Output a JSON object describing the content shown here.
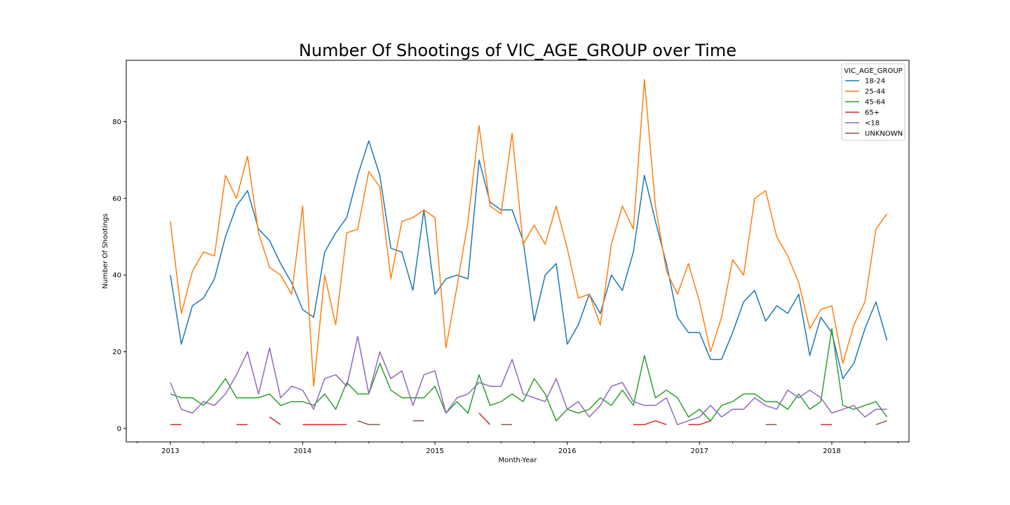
{
  "chart_data": {
    "type": "line",
    "title": "Number Of Shootings of VIC_AGE_GROUP over Time",
    "xlabel": "Month-Year",
    "ylabel": "Number Of Shootings",
    "x_start": "2013-01",
    "x_range": [
      "2012-09",
      "2018-08"
    ],
    "ylim": [
      -3.5,
      96
    ],
    "y_ticks": [
      0,
      20,
      40,
      60,
      80
    ],
    "x_ticks": [
      {
        "label": "2013",
        "date": "2013-01"
      },
      {
        "label": "2014",
        "date": "2014-01"
      },
      {
        "label": "2015",
        "date": "2015-01"
      },
      {
        "label": "2016",
        "date": "2016-01"
      },
      {
        "label": "2017",
        "date": "2017-01"
      },
      {
        "label": "2018",
        "date": "2018-01"
      }
    ],
    "legend": {
      "title": "VIC_AGE_GROUP",
      "position": "top-right"
    },
    "grid": false,
    "series": [
      {
        "name": "18-24",
        "color": "#1f77b4",
        "values": [
          40,
          22,
          32,
          34,
          39,
          50,
          58,
          62,
          52,
          49,
          43,
          38,
          31,
          29,
          46,
          51,
          55,
          66,
          75,
          66,
          47,
          46,
          36,
          57,
          35,
          39,
          40,
          39,
          70,
          59,
          57,
          57,
          49,
          28,
          40,
          43,
          22,
          27,
          35,
          30,
          40,
          36,
          46,
          66,
          54,
          43,
          29,
          25,
          25,
          18,
          18,
          25,
          33,
          36,
          28,
          32,
          30,
          35,
          19,
          29,
          25,
          13,
          17,
          26,
          33,
          23
        ]
      },
      {
        "name": "25-44",
        "color": "#ff7f0e",
        "values": [
          54,
          30,
          41,
          46,
          45,
          66,
          60,
          71,
          51,
          42,
          40,
          35,
          58,
          11,
          40,
          27,
          51,
          52,
          67,
          63,
          39,
          54,
          55,
          57,
          55,
          21,
          37,
          54,
          79,
          58,
          56,
          77,
          48,
          53,
          48,
          58,
          47,
          34,
          35,
          27,
          48,
          58,
          52,
          91,
          58,
          41,
          35,
          43,
          33,
          20,
          29,
          44,
          40,
          60,
          62,
          50,
          45,
          38,
          26,
          31,
          32,
          17,
          27,
          33,
          52,
          56
        ]
      },
      {
        "name": "45-64",
        "color": "#2ca02c",
        "values": [
          9,
          8,
          8,
          6,
          9,
          13,
          8,
          8,
          8,
          9,
          6,
          7,
          7,
          6,
          9,
          5,
          12,
          9,
          9,
          17,
          10,
          8,
          8,
          8,
          11,
          4,
          7,
          4,
          14,
          6,
          7,
          9,
          7,
          13,
          9,
          2,
          5,
          4,
          5,
          8,
          6,
          10,
          6,
          19,
          8,
          10,
          8,
          3,
          5,
          2,
          6,
          7,
          9,
          9,
          7,
          7,
          5,
          9,
          5,
          7,
          26,
          6,
          5,
          6,
          7,
          3
        ]
      },
      {
        "name": "65+",
        "color": "#d62728",
        "values": [
          1,
          1,
          null,
          null,
          null,
          null,
          1,
          1,
          null,
          3,
          1,
          null,
          1,
          1,
          1,
          1,
          1,
          null,
          null,
          null,
          null,
          null,
          null,
          null,
          null,
          null,
          null,
          null,
          4,
          1,
          null,
          null,
          null,
          null,
          null,
          null,
          null,
          null,
          null,
          null,
          null,
          null,
          1,
          1,
          2,
          1,
          null,
          1,
          1,
          2,
          null,
          null,
          null,
          null,
          null,
          null,
          null,
          null,
          null,
          1,
          1,
          null,
          null,
          null,
          null,
          null
        ]
      },
      {
        "name": "<18",
        "color": "#9467bd",
        "values": [
          12,
          5,
          4,
          7,
          6,
          9,
          14,
          20,
          9,
          21,
          8,
          11,
          10,
          5,
          13,
          14,
          11,
          24,
          9,
          20,
          13,
          15,
          6,
          14,
          15,
          4,
          8,
          9,
          12,
          11,
          11,
          18,
          9,
          8,
          7,
          13,
          5,
          7,
          3,
          6,
          11,
          12,
          7,
          6,
          6,
          8,
          1,
          2,
          3,
          6,
          3,
          5,
          5,
          8,
          6,
          5,
          10,
          8,
          10,
          8,
          4,
          5,
          6,
          3,
          5,
          5
        ]
      },
      {
        "name": "UNKNOWN",
        "color": "#8c564b",
        "values": [
          null,
          null,
          null,
          null,
          null,
          null,
          null,
          null,
          null,
          null,
          null,
          null,
          null,
          null,
          null,
          null,
          null,
          2,
          1,
          1,
          null,
          null,
          2,
          2,
          null,
          null,
          null,
          null,
          null,
          null,
          1,
          1,
          null,
          null,
          null,
          null,
          null,
          null,
          null,
          null,
          null,
          null,
          null,
          null,
          null,
          null,
          null,
          null,
          null,
          null,
          null,
          null,
          null,
          null,
          1,
          1,
          null,
          null,
          null,
          null,
          null,
          null,
          null,
          null,
          1,
          2
        ]
      }
    ]
  }
}
